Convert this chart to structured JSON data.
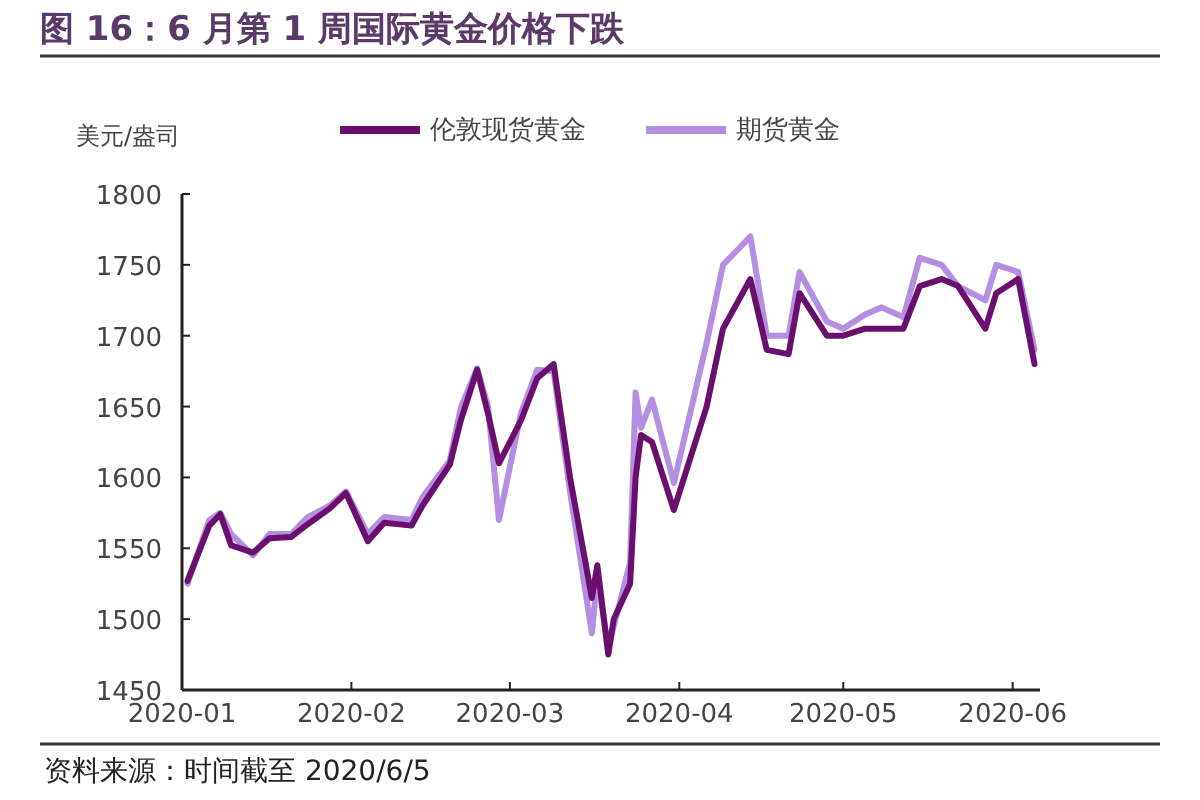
{
  "chart_data": {
    "type": "line",
    "title": "图 16：6 月第 1 周国际黄金价格下跌",
    "ylabel": "美元/盎司",
    "annotations": [
      "资料来源：时间截至 2020/6/5"
    ],
    "legend": "top",
    "grid": false,
    "marker": "none",
    "line_style": "solid",
    "xlim": [
      "2020-01-01",
      "2020-06-06"
    ],
    "xticks": [
      {
        "value": "2020-01-01",
        "label": "2020-01"
      },
      {
        "value": "2020-02-01",
        "label": "2020-02"
      },
      {
        "value": "2020-03-01",
        "label": "2020-03"
      },
      {
        "value": "2020-04-01",
        "label": "2020-04"
      },
      {
        "value": "2020-05-01",
        "label": "2020-05"
      },
      {
        "value": "2020-06-01",
        "label": "2020-06"
      }
    ],
    "ylim": [
      1450,
      1800
    ],
    "yticks": [
      1450,
      1500,
      1550,
      1600,
      1650,
      1700,
      1750,
      1800
    ],
    "series": [
      {
        "name": "伦敦现货黄金",
        "color": "#6a0f6e",
        "x": [
          "2020-01-02",
          "2020-01-06",
          "2020-01-08",
          "2020-01-10",
          "2020-01-14",
          "2020-01-17",
          "2020-01-21",
          "2020-01-24",
          "2020-01-28",
          "2020-01-31",
          "2020-02-04",
          "2020-02-07",
          "2020-02-12",
          "2020-02-14",
          "2020-02-19",
          "2020-02-21",
          "2020-02-24",
          "2020-02-26",
          "2020-02-28",
          "2020-03-03",
          "2020-03-06",
          "2020-03-09",
          "2020-03-12",
          "2020-03-16",
          "2020-03-17",
          "2020-03-19",
          "2020-03-20",
          "2020-03-23",
          "2020-03-24",
          "2020-03-25",
          "2020-03-27",
          "2020-03-31",
          "2020-04-06",
          "2020-04-09",
          "2020-04-14",
          "2020-04-17",
          "2020-04-21",
          "2020-04-23",
          "2020-04-28",
          "2020-05-01",
          "2020-05-05",
          "2020-05-08",
          "2020-05-12",
          "2020-05-15",
          "2020-05-19",
          "2020-05-22",
          "2020-05-27",
          "2020-05-29",
          "2020-06-02",
          "2020-06-05"
        ],
        "values": [
          1527,
          1566,
          1574,
          1552,
          1547,
          1557,
          1558,
          1567,
          1578,
          1589,
          1555,
          1568,
          1566,
          1580,
          1609,
          1640,
          1676,
          1645,
          1610,
          1640,
          1670,
          1680,
          1600,
          1515,
          1538,
          1475,
          1500,
          1525,
          1600,
          1630,
          1625,
          1577,
          1650,
          1705,
          1740,
          1690,
          1687,
          1730,
          1700,
          1700,
          1705,
          1705,
          1705,
          1735,
          1740,
          1735,
          1705,
          1730,
          1740,
          1680
        ]
      },
      {
        "name": "期货黄金",
        "color": "#b48ee0",
        "x": [
          "2020-01-02",
          "2020-01-06",
          "2020-01-08",
          "2020-01-10",
          "2020-01-14",
          "2020-01-17",
          "2020-01-21",
          "2020-01-24",
          "2020-01-28",
          "2020-01-31",
          "2020-02-04",
          "2020-02-07",
          "2020-02-12",
          "2020-02-14",
          "2020-02-19",
          "2020-02-21",
          "2020-02-24",
          "2020-02-26",
          "2020-02-28",
          "2020-03-03",
          "2020-03-06",
          "2020-03-09",
          "2020-03-12",
          "2020-03-16",
          "2020-03-17",
          "2020-03-19",
          "2020-03-20",
          "2020-03-23",
          "2020-03-24",
          "2020-03-25",
          "2020-03-27",
          "2020-03-31",
          "2020-04-06",
          "2020-04-09",
          "2020-04-14",
          "2020-04-17",
          "2020-04-21",
          "2020-04-23",
          "2020-04-28",
          "2020-05-01",
          "2020-05-05",
          "2020-05-08",
          "2020-05-12",
          "2020-05-15",
          "2020-05-19",
          "2020-05-22",
          "2020-05-27",
          "2020-05-29",
          "2020-06-02",
          "2020-06-05"
        ],
        "values": [
          1525,
          1570,
          1575,
          1560,
          1545,
          1560,
          1560,
          1572,
          1580,
          1590,
          1560,
          1572,
          1570,
          1586,
          1612,
          1649,
          1677,
          1650,
          1570,
          1645,
          1676,
          1675,
          1590,
          1490,
          1530,
          1480,
          1495,
          1540,
          1660,
          1635,
          1655,
          1596,
          1695,
          1750,
          1770,
          1700,
          1700,
          1745,
          1710,
          1705,
          1715,
          1720,
          1713,
          1755,
          1750,
          1735,
          1725,
          1750,
          1745,
          1690
        ]
      }
    ]
  }
}
